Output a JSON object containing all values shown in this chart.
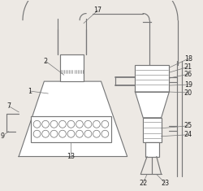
{
  "bg_color": "#ede9e4",
  "lc": "#777777",
  "fig_width": 2.5,
  "fig_height": 2.35,
  "dpi": 100
}
